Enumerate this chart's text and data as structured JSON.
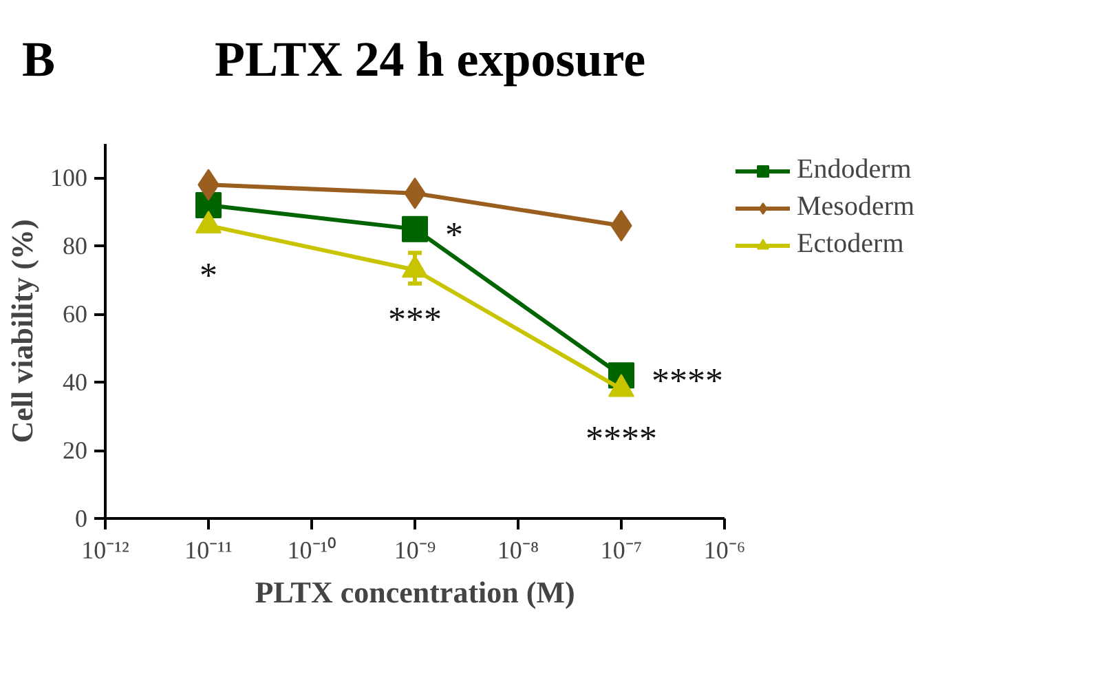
{
  "chart_data": {
    "type": "line",
    "title": "PLTX 24 h exposure",
    "subtitle": "B",
    "xlabel": "PLTX concentration (M)",
    "ylabel": "Cell viability (%)",
    "log": "x",
    "x": [
      1e-11,
      1e-09,
      1e-07
    ],
    "series": [
      {
        "name": "Endoderm",
        "color": "#006400",
        "marker": "square",
        "values": [
          92,
          85,
          42
        ]
      },
      {
        "name": "Mesoderm",
        "color": "#9a5f1e",
        "marker": "diamond",
        "values": [
          98,
          95.5,
          86
        ]
      },
      {
        "name": "Ectoderm",
        "color": "#c8c400",
        "marker": "triangle",
        "values": [
          86,
          73,
          38
        ],
        "errors": [
          null,
          [
            69,
            78
          ],
          null
        ]
      }
    ],
    "xlim": [
      1e-12,
      1e-06
    ],
    "xticks": [
      {
        "value": 1e-12,
        "label": "10⁻¹²"
      },
      {
        "value": 1e-11,
        "label": "10⁻¹¹"
      },
      {
        "value": 1e-10,
        "label": "10⁻¹⁰"
      },
      {
        "value": 1e-09,
        "label": "10⁻⁹"
      },
      {
        "value": 1e-08,
        "label": "10⁻⁸"
      },
      {
        "value": 1e-07,
        "label": "10⁻⁷"
      },
      {
        "value": 1e-06,
        "label": "10⁻⁶"
      }
    ],
    "ylim": [
      0,
      110
    ],
    "yticks": [
      0,
      20,
      40,
      60,
      80,
      100
    ],
    "grid": false,
    "legend": "right",
    "annotations": [
      {
        "text": "*",
        "x": 1e-11,
        "y": 86
      },
      {
        "text": "*",
        "x": 1e-09,
        "y": 85
      },
      {
        "text": "***",
        "x": 1e-09,
        "y": 73
      },
      {
        "text": "****",
        "x": 1e-07,
        "y": 42
      },
      {
        "text": "****",
        "x": 1e-07,
        "y": 38
      }
    ]
  }
}
